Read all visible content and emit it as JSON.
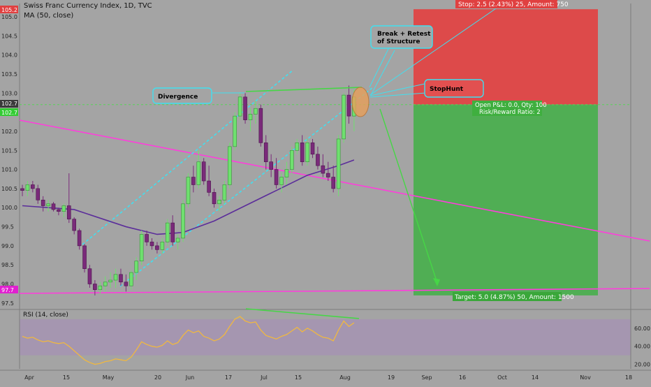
{
  "header": {
    "title": "Swiss Franc Currency Index, 1D, TVC",
    "ma_label": "MA (50, close)"
  },
  "rsi_panel": {
    "label": "RSI (14, close)",
    "ticks": [
      "60.00",
      "40.00",
      "20.00"
    ]
  },
  "annotations": {
    "divergence": "Divergence",
    "break_retest_line1": "Break + Retest",
    "break_retest_line2": "of Structure",
    "stophunt": "StopHunt",
    "stop_label": "Stop: 2.5 (2.43%) 25, Amount: 750",
    "open_pnl": "Open P&L: 0.0, Qty: 100",
    "rr_ratio": "Risk/Reward Ratio: 2",
    "target_label": "Target: 5.0 (4.87%) 50, Amount: 1500"
  },
  "price_badges": {
    "top": "105.2",
    "entry": "102.7",
    "entry_alt": "102.7",
    "bottom": "97.7"
  },
  "colors": {
    "bg": "#a4a4a4",
    "up": "#6fe06f",
    "down": "#7a2a7a",
    "ma": "#5b2d9a",
    "trend": "#ff3ddc",
    "channel": "#40e0f0",
    "stop_zone": "#e04646",
    "target_zone": "#4caf50",
    "rsi_line": "#f0b840"
  },
  "chart_data": {
    "type": "candlestick",
    "title": "Swiss Franc Currency Index, 1D, TVC",
    "x_labels": [
      "Apr",
      "15",
      "May",
      "20",
      "Jun",
      "17",
      "Jul",
      "15",
      "Aug",
      "19",
      "Sep",
      "16",
      "Oct",
      "14",
      "Nov",
      "18"
    ],
    "y_ticks": [
      "105.0",
      "104.5",
      "104.0",
      "103.5",
      "103.0",
      "102.5",
      "102.0",
      "101.5",
      "101.0",
      "100.5",
      "100.0",
      "99.5",
      "99.0",
      "98.5",
      "98.0",
      "97.5"
    ],
    "ylim": [
      97.35,
      105.35
    ],
    "entry_price": 102.7,
    "stop_price": 105.2,
    "target_price": 97.7,
    "ohlc": [
      [
        100.5,
        100.6,
        100.3,
        100.45
      ],
      [
        100.45,
        100.7,
        100.3,
        100.6
      ],
      [
        100.6,
        100.7,
        100.4,
        100.5
      ],
      [
        100.5,
        100.6,
        100.1,
        100.2
      ],
      [
        100.2,
        100.3,
        99.9,
        100.05
      ],
      [
        100.05,
        100.2,
        99.9,
        100.1
      ],
      [
        100.1,
        100.15,
        99.9,
        99.95
      ],
      [
        99.95,
        100.0,
        99.8,
        99.9
      ],
      [
        99.9,
        100.1,
        99.75,
        100.05
      ],
      [
        100.05,
        100.9,
        99.6,
        99.7
      ],
      [
        99.7,
        99.75,
        99.3,
        99.4
      ],
      [
        99.4,
        99.45,
        98.9,
        99.0
      ],
      [
        99.0,
        99.05,
        98.3,
        98.4
      ],
      [
        98.4,
        98.5,
        97.9,
        98.0
      ],
      [
        98.0,
        98.1,
        97.7,
        97.85
      ],
      [
        97.85,
        98.05,
        97.75,
        97.95
      ],
      [
        97.95,
        98.2,
        97.8,
        98.05
      ],
      [
        98.05,
        98.3,
        97.9,
        98.1
      ],
      [
        98.1,
        98.4,
        97.9,
        98.25
      ],
      [
        98.25,
        98.4,
        97.95,
        98.05
      ],
      [
        98.05,
        98.25,
        97.8,
        97.95
      ],
      [
        97.95,
        98.35,
        97.85,
        98.3
      ],
      [
        98.3,
        98.7,
        98.1,
        98.6
      ],
      [
        98.6,
        99.4,
        98.5,
        99.3
      ],
      [
        99.3,
        99.4,
        99.0,
        99.1
      ],
      [
        99.1,
        99.2,
        98.9,
        99.0
      ],
      [
        99.0,
        99.1,
        98.8,
        98.9
      ],
      [
        98.9,
        99.2,
        98.8,
        99.1
      ],
      [
        99.1,
        99.7,
        99.0,
        99.6
      ],
      [
        99.6,
        99.8,
        99.0,
        99.1
      ],
      [
        99.1,
        99.3,
        98.9,
        99.2
      ],
      [
        99.2,
        100.2,
        99.1,
        100.1
      ],
      [
        100.1,
        100.9,
        100.0,
        100.8
      ],
      [
        100.8,
        101.1,
        100.4,
        100.6
      ],
      [
        100.6,
        101.5,
        100.5,
        101.2
      ],
      [
        101.2,
        101.3,
        100.6,
        100.7
      ],
      [
        100.7,
        101.1,
        100.3,
        100.4
      ],
      [
        100.4,
        100.5,
        100.0,
        100.1
      ],
      [
        100.1,
        100.3,
        99.9,
        100.2
      ],
      [
        100.2,
        100.7,
        100.1,
        100.6
      ],
      [
        100.6,
        101.7,
        100.5,
        101.6
      ],
      [
        101.6,
        102.5,
        101.5,
        102.4
      ],
      [
        102.4,
        103.0,
        102.3,
        102.9
      ],
      [
        102.9,
        103.0,
        102.2,
        102.3
      ],
      [
        102.3,
        102.6,
        102.0,
        102.45
      ],
      [
        102.45,
        102.8,
        102.2,
        102.6
      ],
      [
        102.6,
        102.7,
        101.6,
        101.7
      ],
      [
        101.7,
        101.9,
        101.0,
        101.2
      ],
      [
        101.2,
        101.4,
        100.8,
        101.0
      ],
      [
        101.0,
        101.3,
        100.5,
        100.6
      ],
      [
        100.6,
        100.9,
        100.4,
        100.8
      ],
      [
        100.8,
        101.2,
        100.6,
        101.0
      ],
      [
        101.0,
        101.6,
        100.9,
        101.5
      ],
      [
        101.5,
        101.8,
        101.4,
        101.7
      ],
      [
        101.7,
        101.9,
        101.1,
        101.2
      ],
      [
        101.2,
        101.8,
        101.1,
        101.7
      ],
      [
        101.7,
        101.8,
        101.3,
        101.4
      ],
      [
        101.4,
        101.6,
        101.0,
        101.1
      ],
      [
        101.1,
        101.4,
        100.8,
        100.9
      ],
      [
        100.9,
        101.2,
        100.7,
        100.8
      ],
      [
        100.8,
        101.1,
        100.4,
        100.5
      ],
      [
        100.5,
        101.9,
        100.3,
        101.8
      ],
      [
        101.8,
        103.0,
        101.7,
        102.95
      ],
      [
        102.95,
        103.2,
        102.2,
        102.4
      ],
      [
        102.4,
        103.1,
        102.0,
        102.9
      ]
    ],
    "ma50": [
      [
        0,
        100.05
      ],
      [
        10,
        99.95
      ],
      [
        20,
        99.5
      ],
      [
        26,
        99.3
      ],
      [
        31,
        99.35
      ],
      [
        37,
        99.65
      ],
      [
        43,
        100.05
      ],
      [
        49,
        100.45
      ],
      [
        55,
        100.85
      ],
      [
        61,
        101.1
      ],
      [
        64,
        101.25
      ]
    ],
    "rsi": [
      51,
      49,
      50,
      47,
      45,
      46,
      44,
      43,
      44,
      40,
      35,
      30,
      25,
      22,
      20,
      21,
      23,
      24,
      26,
      25,
      24,
      28,
      36,
      45,
      42,
      40,
      39,
      41,
      46,
      42,
      44,
      52,
      58,
      55,
      57,
      51,
      49,
      46,
      48,
      53,
      62,
      70,
      73,
      68,
      66,
      67,
      58,
      52,
      50,
      48,
      51,
      53,
      57,
      61,
      56,
      60,
      57,
      53,
      50,
      49,
      46,
      58,
      68,
      62,
      66
    ],
    "rsi_ylim": [
      15,
      80
    ]
  }
}
